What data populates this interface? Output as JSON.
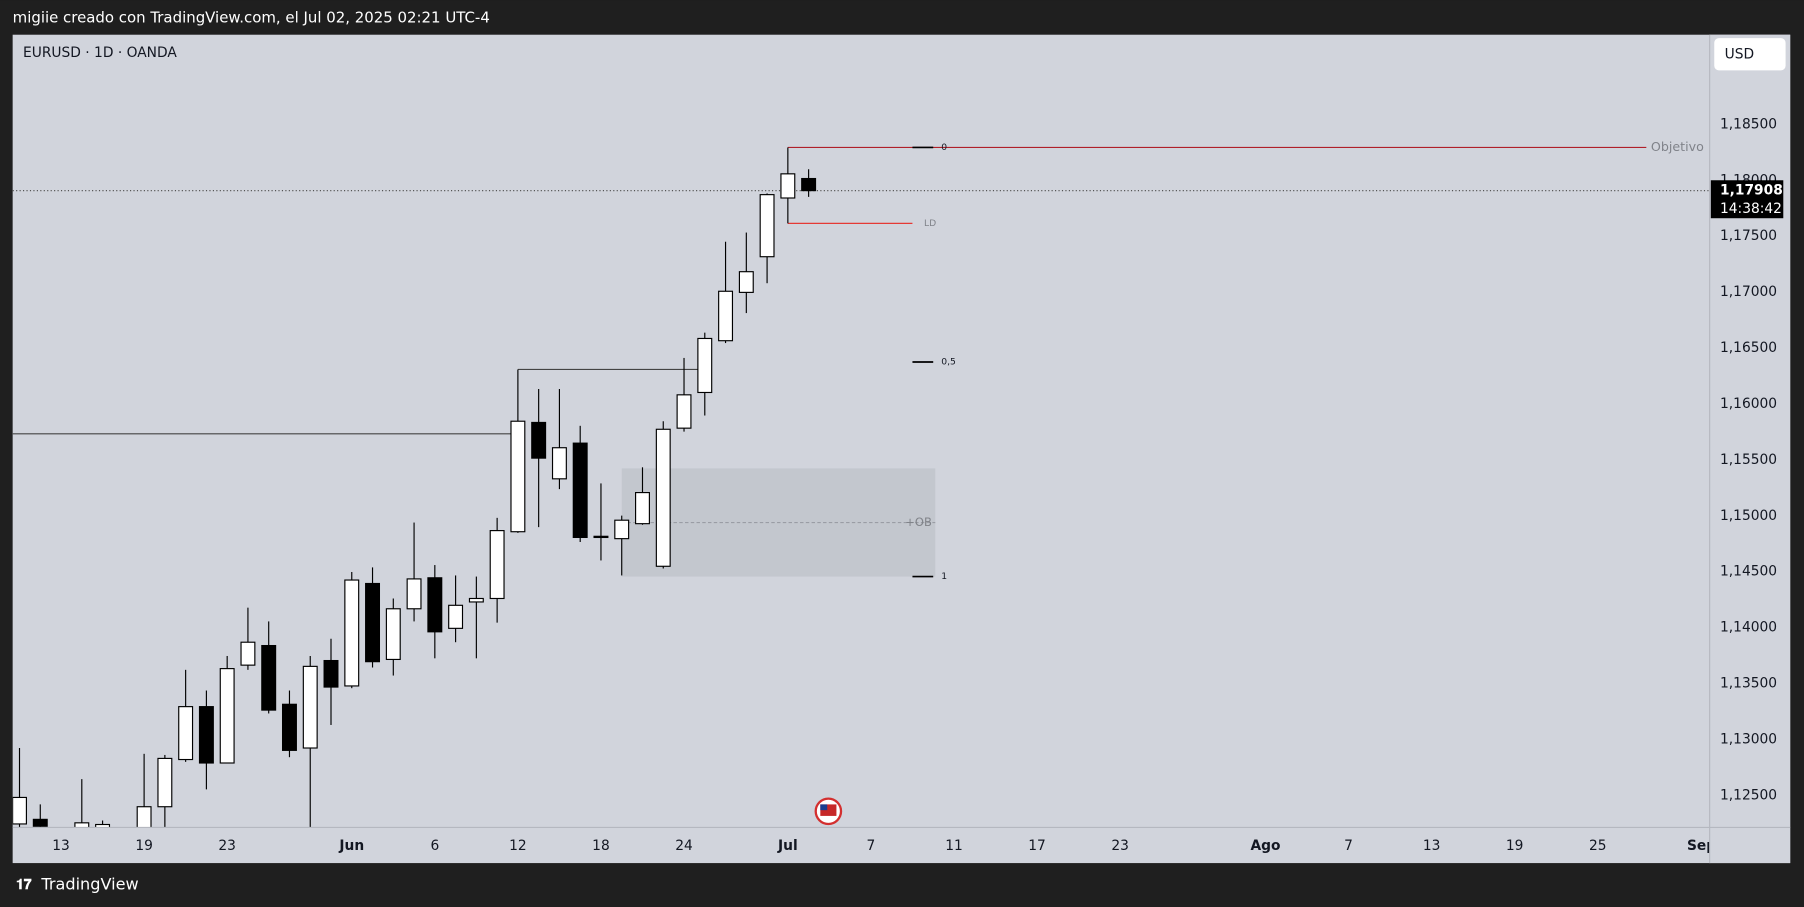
{
  "header": {
    "caption": "migiie creado con TradingView.com, el Jul 02, 2025 02:21 UTC-4",
    "symbol": "EURUSD · 1D · OANDA",
    "currency": "USD"
  },
  "footer": {
    "brand": "TradingView"
  },
  "chart_data": {
    "type": "candlestick",
    "x": [
      0,
      1,
      3,
      4,
      6,
      7,
      8,
      9,
      10,
      11,
      12,
      13,
      14,
      15,
      16,
      17,
      18,
      19,
      20,
      21,
      22,
      23,
      24,
      25,
      26,
      27,
      28,
      29,
      30,
      31,
      32,
      33,
      34,
      35,
      36,
      37,
      38
    ],
    "open": [
      1.12245,
      1.12286,
      1.12152,
      1.12204,
      1.12183,
      1.12399,
      1.12821,
      1.13294,
      1.1279,
      1.13665,
      1.1384,
      1.13315,
      1.12924,
      1.13706,
      1.13479,
      1.14395,
      1.13716,
      1.14169,
      1.14446,
      1.13994,
      1.1423,
      1.14261,
      1.14858,
      1.15835,
      1.15331,
      1.1565,
      1.14817,
      1.14796,
      1.1493,
      1.14549,
      1.15784,
      1.16103,
      1.16566,
      1.16998,
      1.17317,
      1.17842,
      1.18016
    ],
    "high": [
      1.12924,
      1.1242,
      1.12646,
      1.12276,
      1.12872,
      1.12862,
      1.13623,
      1.13438,
      1.13747,
      1.14179,
      1.14056,
      1.13438,
      1.13747,
      1.13901,
      1.14498,
      1.14539,
      1.14261,
      1.1494,
      1.1456,
      1.14467,
      1.14457,
      1.14982,
      1.16309,
      1.16134,
      1.16134,
      1.15805,
      1.1529,
      1.15002,
      1.15434,
      1.15846,
      1.16412,
      1.16638,
      1.17451,
      1.17533,
      1.17883,
      1.18294,
      1.18099
    ],
    "low": [
      1.12183,
      1.12152,
      1.12101,
      1.12101,
      1.12121,
      1.12214,
      1.128,
      1.12554,
      1.1279,
      1.13623,
      1.13233,
      1.12842,
      1.12214,
      1.1313,
      1.13459,
      1.13644,
      1.13572,
      1.14056,
      1.13726,
      1.1387,
      1.13726,
      1.14045,
      1.14848,
      1.14899,
      1.15239,
      1.14766,
      1.14601,
      1.14467,
      1.1492,
      1.14529,
      1.15753,
      1.15897,
      1.16545,
      1.16813,
      1.1708,
      1.17615,
      1.17852
    ],
    "close": [
      1.12482,
      1.12224,
      1.12255,
      1.1224,
      1.12399,
      1.12831,
      1.13294,
      1.1279,
      1.13634,
      1.1387,
      1.13263,
      1.12903,
      1.13654,
      1.13469,
      1.14426,
      1.13696,
      1.14169,
      1.14436,
      1.13963,
      1.142,
      1.14261,
      1.14868,
      1.15846,
      1.15516,
      1.15609,
      1.14807,
      1.14807,
      1.14961,
      1.15208,
      1.15774,
      1.16082,
      1.16586,
      1.17008,
      1.17183,
      1.17872,
      1.18058,
      1.17908
    ],
    "up_color": "#ffffff",
    "down_color": "#000000",
    "xlim": [
      -0.33,
      81.39
    ],
    "xticks": [
      {
        "value": 2,
        "label": "13"
      },
      {
        "value": 6,
        "label": "19"
      },
      {
        "value": 10,
        "label": "23"
      },
      {
        "value": 16,
        "label": "Jun"
      },
      {
        "value": 20,
        "label": "6"
      },
      {
        "value": 24,
        "label": "12"
      },
      {
        "value": 28,
        "label": "18"
      },
      {
        "value": 32,
        "label": "24"
      },
      {
        "value": 37,
        "label": "Jul"
      },
      {
        "value": 41,
        "label": "7"
      },
      {
        "value": 45,
        "label": "11"
      },
      {
        "value": 49,
        "label": "17"
      },
      {
        "value": 53,
        "label": "23"
      },
      {
        "value": 60,
        "label": "Ago"
      },
      {
        "value": 64,
        "label": "7"
      },
      {
        "value": 68,
        "label": "13"
      },
      {
        "value": 72,
        "label": "19"
      },
      {
        "value": 76,
        "label": "25"
      },
      {
        "value": 81,
        "label": "Sep"
      }
    ],
    "ylim": [
      1.12214,
      1.19302
    ],
    "yticks": [
      {
        "value": 1.125,
        "label": "1,12500"
      },
      {
        "value": 1.13,
        "label": "1,13000"
      },
      {
        "value": 1.135,
        "label": "1,13500"
      },
      {
        "value": 1.14,
        "label": "1,14000"
      },
      {
        "value": 1.145,
        "label": "1,14500"
      },
      {
        "value": 1.15,
        "label": "1,15000"
      },
      {
        "value": 1.155,
        "label": "1,15500"
      },
      {
        "value": 1.16,
        "label": "1,16000"
      },
      {
        "value": 1.165,
        "label": "1,16500"
      },
      {
        "value": 1.17,
        "label": "1,17000"
      },
      {
        "value": 1.175,
        "label": "1,17500"
      },
      {
        "value": 1.18,
        "label": "1,18000"
      },
      {
        "value": 1.185,
        "label": "1,18500"
      }
    ],
    "grid": false,
    "lines": [
      {
        "x": [
          -0.33,
          24
        ],
        "y": 1.15733,
        "color": "#444444"
      },
      {
        "x": [
          24,
          33
        ],
        "y": 1.16309,
        "color": "#444444"
      },
      {
        "x": [
          37,
          78.34
        ],
        "y": 1.18294,
        "color": "#b0202a",
        "label": "Objetivo"
      },
      {
        "x": [
          37,
          43
        ],
        "y": 1.17615,
        "color": "#e53935",
        "label": "LD"
      }
    ],
    "zones": [
      {
        "label": "+OB",
        "x": [
          29,
          44.1
        ],
        "y": [
          1.14457,
          1.15424
        ],
        "mid": 1.1494
      }
    ],
    "fib": {
      "x": [
        43,
        44
      ],
      "levels": [
        {
          "value": 1.18294,
          "label": "0"
        },
        {
          "value": 1.16376,
          "label": "0,5"
        },
        {
          "value": 1.14457,
          "label": "1"
        }
      ]
    },
    "last": {
      "value": 1.17908,
      "label": "1,17908",
      "countdown": "14:38:42"
    }
  }
}
